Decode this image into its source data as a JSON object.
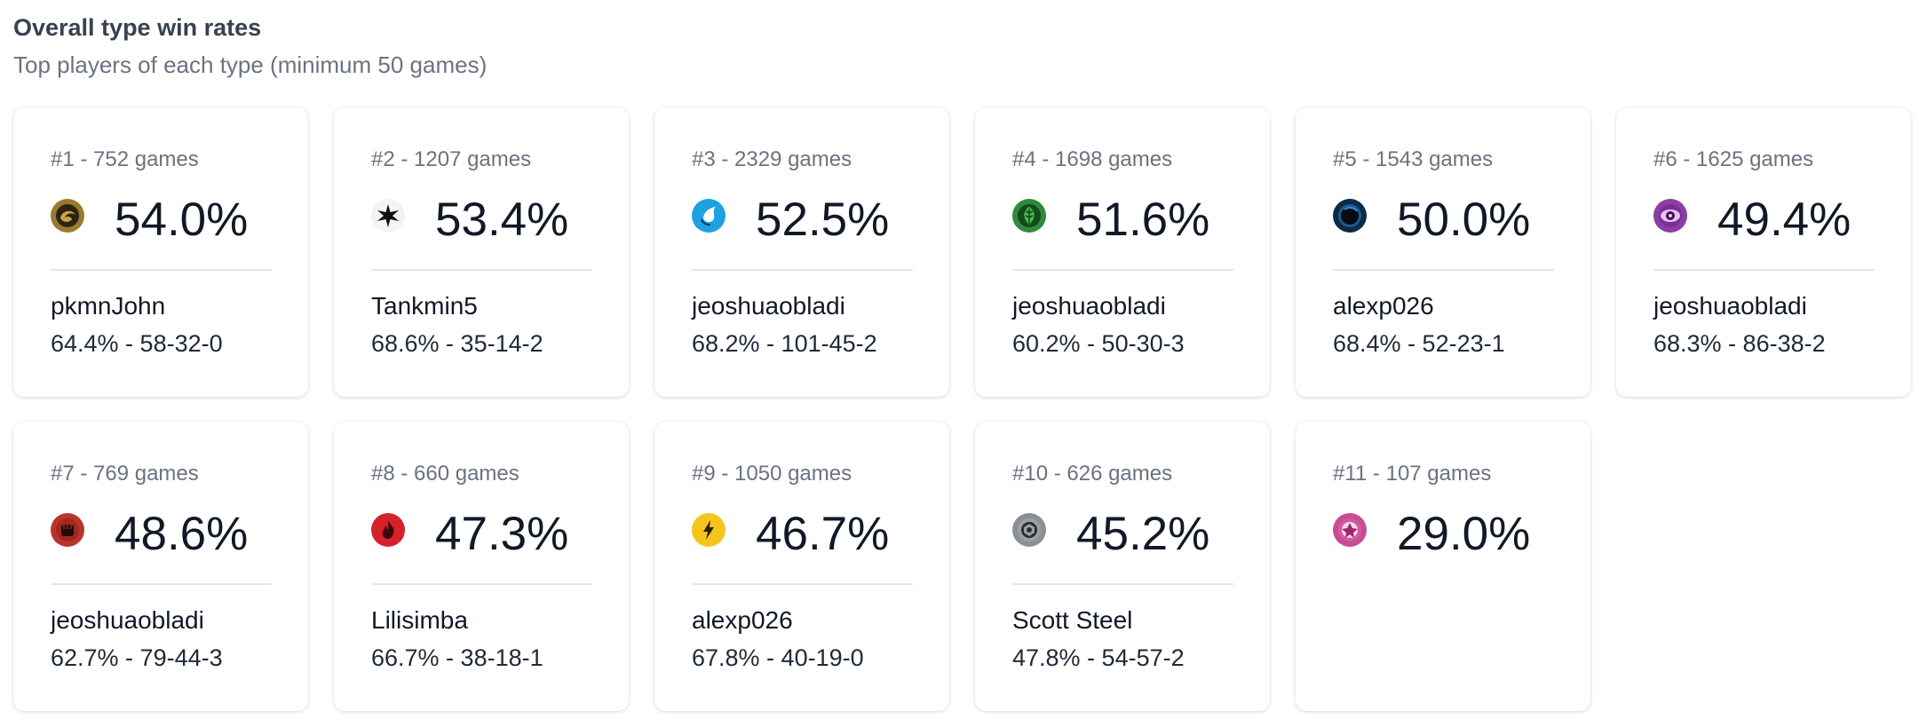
{
  "header": {
    "title": "Overall type win rates",
    "subtitle": "Top players of each type (minimum 50 games)"
  },
  "cards": [
    {
      "meta": "#1 - 752 games",
      "rate": "54.0%",
      "icon": "dark-type-icon",
      "icon_color": "#9a7b2c",
      "player": "pkmnJohn",
      "record": "64.4% - 58-32-0",
      "win_rate_value": 54.0
    },
    {
      "meta": "#2 - 1207 games",
      "rate": "53.4%",
      "icon": "normal-star-type-icon",
      "icon_color": "#f3f4f6",
      "player": "Tankmin5",
      "record": "68.6% - 35-14-2",
      "win_rate_value": 53.4
    },
    {
      "meta": "#3 - 2329 games",
      "rate": "52.5%",
      "icon": "water-type-icon",
      "icon_color": "#1da1df",
      "player": "jeoshuaobladi",
      "record": "68.2% - 101-45-2",
      "win_rate_value": 52.5
    },
    {
      "meta": "#4 - 1698 games",
      "rate": "51.6%",
      "icon": "grass-type-icon",
      "icon_color": "#2f8a3b",
      "player": "jeoshuaobladi",
      "record": "60.2% - 50-30-3",
      "win_rate_value": 51.6
    },
    {
      "meta": "#5 - 1543 games",
      "rate": "50.0%",
      "icon": "darkness-orb-icon",
      "icon_color": "#0d2a4a",
      "player": "alexp026",
      "record": "68.4% - 52-23-1",
      "win_rate_value": 50.0
    },
    {
      "meta": "#6 - 1625 games",
      "rate": "49.4%",
      "icon": "psychic-eye-type-icon",
      "icon_color": "#8b3fa3",
      "player": "jeoshuaobladi",
      "record": "68.3% - 86-38-2",
      "win_rate_value": 49.4
    },
    {
      "meta": "#7 - 769 games",
      "rate": "48.6%",
      "icon": "fighting-fist-type-icon",
      "icon_color": "#b8352b",
      "player": "jeoshuaobladi",
      "record": "62.7% - 79-44-3",
      "win_rate_value": 48.6
    },
    {
      "meta": "#8 - 660 games",
      "rate": "47.3%",
      "icon": "fire-type-icon",
      "icon_color": "#d52229",
      "player": "Lilisimba",
      "record": "66.7% - 38-18-1",
      "win_rate_value": 47.3
    },
    {
      "meta": "#9 - 1050 games",
      "rate": "46.7%",
      "icon": "lightning-type-icon",
      "icon_color": "#f6c51d",
      "player": "alexp026",
      "record": "67.8% - 40-19-0",
      "win_rate_value": 46.7
    },
    {
      "meta": "#10 - 626 games",
      "rate": "45.2%",
      "icon": "metal-type-icon",
      "icon_color": "#8a9096",
      "player": "Scott Steel",
      "record": "47.8% - 54-57-2",
      "win_rate_value": 45.2
    },
    {
      "meta": "#11 - 107 games",
      "rate": "29.0%",
      "icon": "fairy-type-icon",
      "icon_color": "#c84c94",
      "player": "",
      "record": "",
      "win_rate_value": 29.0
    }
  ]
}
